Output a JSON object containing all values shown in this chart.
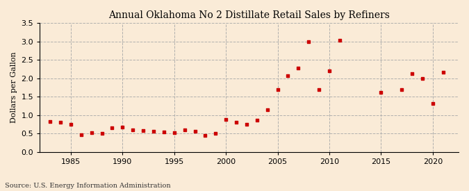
{
  "title": "Annual Oklahoma No 2 Distillate Retail Sales by Refiners",
  "ylabel": "Dollars per Gallon",
  "source": "Source: U.S. Energy Information Administration",
  "background_color": "#faebd7",
  "marker_color": "#cc0000",
  "xlim": [
    1982,
    2022.5
  ],
  "ylim": [
    0.0,
    3.5
  ],
  "yticks": [
    0.0,
    0.5,
    1.0,
    1.5,
    2.0,
    2.5,
    3.0,
    3.5
  ],
  "xticks": [
    1985,
    1990,
    1995,
    2000,
    2005,
    2010,
    2015,
    2020
  ],
  "data": [
    [
      1983,
      0.82
    ],
    [
      1984,
      0.8
    ],
    [
      1985,
      0.76
    ],
    [
      1986,
      0.47
    ],
    [
      1987,
      0.52
    ],
    [
      1988,
      0.51
    ],
    [
      1989,
      0.65
    ],
    [
      1990,
      0.68
    ],
    [
      1991,
      0.6
    ],
    [
      1992,
      0.58
    ],
    [
      1993,
      0.57
    ],
    [
      1994,
      0.55
    ],
    [
      1995,
      0.52
    ],
    [
      1996,
      0.6
    ],
    [
      1997,
      0.57
    ],
    [
      1998,
      0.46
    ],
    [
      1999,
      0.51
    ],
    [
      2000,
      0.88
    ],
    [
      2001,
      0.8
    ],
    [
      2002,
      0.75
    ],
    [
      2003,
      0.87
    ],
    [
      2004,
      1.15
    ],
    [
      2005,
      1.7
    ],
    [
      2006,
      2.07
    ],
    [
      2007,
      2.27
    ],
    [
      2008,
      3.0
    ],
    [
      2009,
      1.7
    ],
    [
      2010,
      2.2
    ],
    [
      2011,
      3.02
    ],
    [
      2015,
      1.61
    ],
    [
      2017,
      1.7
    ],
    [
      2018,
      2.12
    ],
    [
      2019,
      1.99
    ],
    [
      2020,
      1.31
    ],
    [
      2021,
      2.17
    ]
  ],
  "title_fontsize": 10,
  "ylabel_fontsize": 8,
  "tick_fontsize": 8,
  "source_fontsize": 7
}
